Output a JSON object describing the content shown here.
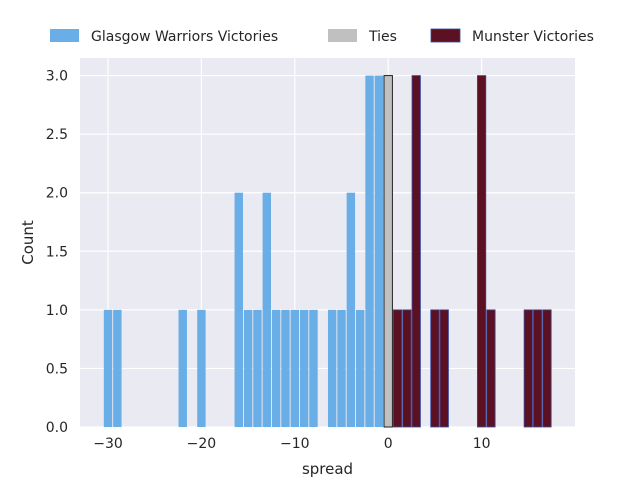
{
  "chart_data": {
    "type": "bar",
    "title": "",
    "xlabel": "spread",
    "ylabel": "Count",
    "xlim": [
      -33,
      20
    ],
    "ylim": [
      0,
      3.15
    ],
    "x_ticks": [
      -30,
      -20,
      -10,
      0,
      10
    ],
    "y_ticks": [
      0.0,
      0.5,
      1.0,
      1.5,
      2.0,
      2.5,
      3.0
    ],
    "grid": true,
    "legend_position": "top, above plot",
    "series": [
      {
        "name": "Glasgow Warriors Victories",
        "color": "#6aaee8",
        "points": [
          {
            "x": -30,
            "y": 1
          },
          {
            "x": -29,
            "y": 1
          },
          {
            "x": -22,
            "y": 1
          },
          {
            "x": -20,
            "y": 1
          },
          {
            "x": -16,
            "y": 2
          },
          {
            "x": -15,
            "y": 1
          },
          {
            "x": -14,
            "y": 1
          },
          {
            "x": -13,
            "y": 2
          },
          {
            "x": -12,
            "y": 1
          },
          {
            "x": -11,
            "y": 1
          },
          {
            "x": -10,
            "y": 1
          },
          {
            "x": -9,
            "y": 1
          },
          {
            "x": -8,
            "y": 1
          },
          {
            "x": -6,
            "y": 1
          },
          {
            "x": -5,
            "y": 1
          },
          {
            "x": -4,
            "y": 2
          },
          {
            "x": -3,
            "y": 1
          },
          {
            "x": -2,
            "y": 3
          },
          {
            "x": -1,
            "y": 3
          }
        ]
      },
      {
        "name": "Ties",
        "color": "#c0c0c0",
        "points": [
          {
            "x": 0,
            "y": 3
          }
        ]
      },
      {
        "name": "Munster Victories",
        "color": "#5c1122",
        "points": [
          {
            "x": 1,
            "y": 1
          },
          {
            "x": 2,
            "y": 1
          },
          {
            "x": 3,
            "y": 3
          },
          {
            "x": 5,
            "y": 1
          },
          {
            "x": 6,
            "y": 1
          },
          {
            "x": 10,
            "y": 3
          },
          {
            "x": 11,
            "y": 1
          },
          {
            "x": 15,
            "y": 1
          },
          {
            "x": 16,
            "y": 1
          },
          {
            "x": 17,
            "y": 1
          }
        ]
      }
    ]
  }
}
